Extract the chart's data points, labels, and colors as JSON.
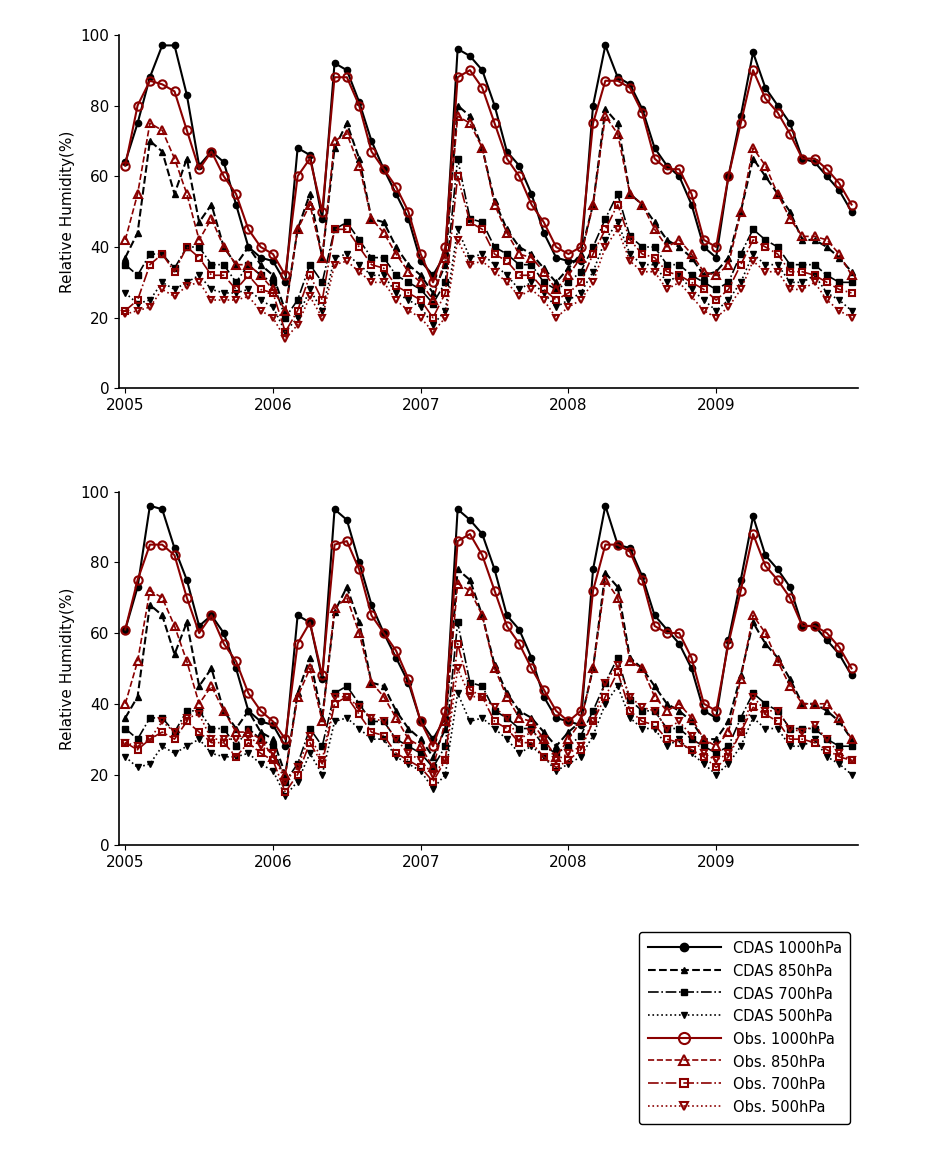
{
  "ylabel": "Relative Humidity(%)",
  "ylim": [
    0,
    100
  ],
  "yticks": [
    0,
    20,
    40,
    60,
    80,
    100
  ],
  "year_labels": [
    2005,
    2006,
    2007,
    2008,
    2009
  ],
  "cdas_1000": [
    64,
    75,
    88,
    97,
    97,
    83,
    63,
    67,
    64,
    52,
    40,
    37,
    36,
    30,
    68,
    66,
    48,
    92,
    90,
    81,
    70,
    62,
    55,
    48,
    36,
    32,
    38,
    96,
    94,
    90,
    80,
    67,
    63,
    55,
    44,
    37,
    36,
    36,
    80,
    97,
    88,
    86,
    79,
    68,
    63,
    60,
    52,
    40,
    37,
    60,
    77,
    95,
    85,
    80,
    75,
    65,
    64,
    60,
    56,
    50
  ],
  "cdas_850": [
    37,
    44,
    70,
    67,
    55,
    65,
    47,
    52,
    40,
    35,
    40,
    35,
    32,
    22,
    45,
    55,
    37,
    68,
    75,
    65,
    48,
    47,
    40,
    35,
    32,
    27,
    35,
    80,
    77,
    68,
    53,
    45,
    40,
    38,
    34,
    30,
    34,
    38,
    52,
    79,
    75,
    55,
    52,
    47,
    42,
    40,
    37,
    32,
    33,
    37,
    50,
    65,
    60,
    55,
    50,
    42,
    42,
    40,
    37,
    33
  ],
  "cdas_700": [
    35,
    32,
    38,
    38,
    34,
    40,
    40,
    35,
    35,
    30,
    35,
    32,
    30,
    20,
    25,
    35,
    30,
    45,
    47,
    42,
    37,
    37,
    32,
    30,
    28,
    24,
    30,
    65,
    48,
    47,
    40,
    38,
    35,
    35,
    30,
    28,
    30,
    33,
    40,
    48,
    55,
    43,
    40,
    40,
    35,
    35,
    32,
    30,
    28,
    30,
    38,
    45,
    42,
    40,
    35,
    35,
    35,
    32,
    30,
    30
  ],
  "cdas_500": [
    27,
    24,
    25,
    30,
    28,
    30,
    32,
    28,
    27,
    27,
    28,
    25,
    23,
    16,
    20,
    28,
    22,
    37,
    38,
    35,
    32,
    32,
    27,
    25,
    23,
    18,
    22,
    45,
    37,
    38,
    35,
    32,
    28,
    30,
    27,
    23,
    25,
    27,
    33,
    42,
    47,
    38,
    35,
    35,
    30,
    32,
    28,
    25,
    22,
    25,
    30,
    38,
    35,
    35,
    30,
    30,
    32,
    27,
    25,
    22
  ],
  "obs_1000": [
    63,
    80,
    87,
    86,
    84,
    73,
    62,
    67,
    60,
    55,
    45,
    40,
    38,
    32,
    60,
    65,
    50,
    88,
    88,
    80,
    67,
    62,
    57,
    50,
    38,
    30,
    40,
    88,
    90,
    85,
    75,
    65,
    60,
    52,
    47,
    40,
    38,
    40,
    75,
    87,
    87,
    85,
    78,
    65,
    62,
    62,
    55,
    42,
    40,
    60,
    75,
    90,
    82,
    78,
    72,
    65,
    65,
    62,
    58,
    52
  ],
  "obs_850": [
    42,
    55,
    75,
    73,
    65,
    55,
    42,
    48,
    40,
    35,
    35,
    32,
    28,
    22,
    45,
    52,
    37,
    70,
    72,
    63,
    48,
    44,
    38,
    33,
    30,
    25,
    37,
    77,
    75,
    68,
    52,
    44,
    38,
    37,
    33,
    28,
    32,
    37,
    52,
    77,
    72,
    55,
    52,
    45,
    40,
    42,
    38,
    33,
    32,
    35,
    50,
    68,
    63,
    55,
    48,
    43,
    43,
    42,
    38,
    32
  ],
  "obs_700": [
    22,
    25,
    35,
    38,
    33,
    40,
    37,
    32,
    32,
    28,
    32,
    28,
    27,
    16,
    22,
    32,
    25,
    45,
    45,
    40,
    35,
    34,
    29,
    27,
    25,
    20,
    27,
    60,
    47,
    45,
    38,
    36,
    32,
    32,
    28,
    25,
    27,
    30,
    38,
    45,
    52,
    42,
    38,
    37,
    33,
    32,
    30,
    28,
    25,
    28,
    35,
    42,
    40,
    38,
    33,
    33,
    32,
    30,
    28,
    27
  ],
  "obs_500": [
    21,
    22,
    23,
    28,
    26,
    29,
    30,
    25,
    25,
    25,
    26,
    22,
    20,
    14,
    18,
    26,
    20,
    35,
    36,
    33,
    30,
    30,
    25,
    22,
    20,
    16,
    20,
    42,
    35,
    36,
    33,
    30,
    26,
    28,
    25,
    20,
    23,
    25,
    30,
    40,
    45,
    36,
    33,
    33,
    28,
    30,
    26,
    22,
    20,
    23,
    28,
    36,
    33,
    33,
    28,
    28,
    30,
    25,
    22,
    20
  ],
  "panel2_cdas_1000": [
    61,
    73,
    96,
    95,
    84,
    75,
    62,
    65,
    60,
    50,
    38,
    35,
    34,
    28,
    65,
    63,
    47,
    95,
    92,
    80,
    68,
    60,
    53,
    46,
    35,
    30,
    36,
    95,
    92,
    88,
    78,
    65,
    61,
    53,
    42,
    36,
    35,
    34,
    78,
    96,
    85,
    84,
    76,
    65,
    61,
    57,
    50,
    38,
    36,
    58,
    75,
    93,
    82,
    78,
    73,
    62,
    62,
    58,
    54,
    48
  ],
  "panel2_cdas_850": [
    36,
    42,
    68,
    65,
    54,
    63,
    45,
    50,
    38,
    33,
    38,
    32,
    30,
    20,
    43,
    53,
    36,
    66,
    73,
    63,
    46,
    45,
    38,
    33,
    30,
    25,
    33,
    78,
    75,
    65,
    51,
    43,
    38,
    36,
    32,
    28,
    32,
    35,
    50,
    77,
    73,
    53,
    50,
    45,
    40,
    38,
    35,
    30,
    30,
    35,
    48,
    63,
    57,
    53,
    47,
    40,
    40,
    38,
    35,
    30
  ],
  "panel2_cdas_700": [
    33,
    30,
    36,
    36,
    32,
    38,
    38,
    33,
    33,
    28,
    33,
    30,
    28,
    18,
    23,
    33,
    28,
    43,
    45,
    40,
    35,
    35,
    30,
    28,
    26,
    22,
    28,
    63,
    46,
    45,
    38,
    36,
    33,
    33,
    28,
    26,
    28,
    31,
    38,
    46,
    53,
    41,
    38,
    38,
    33,
    33,
    30,
    28,
    26,
    28,
    36,
    43,
    40,
    38,
    33,
    33,
    33,
    30,
    28,
    28
  ],
  "panel2_cdas_500": [
    25,
    22,
    23,
    28,
    26,
    28,
    30,
    26,
    25,
    25,
    26,
    23,
    21,
    14,
    18,
    26,
    20,
    35,
    36,
    33,
    30,
    30,
    25,
    23,
    21,
    16,
    20,
    43,
    35,
    36,
    33,
    30,
    26,
    28,
    25,
    21,
    23,
    25,
    31,
    40,
    45,
    36,
    33,
    33,
    28,
    30,
    26,
    23,
    20,
    23,
    28,
    36,
    33,
    33,
    28,
    28,
    30,
    25,
    23,
    20
  ],
  "panel2_obs_1000": [
    61,
    75,
    85,
    85,
    82,
    70,
    60,
    65,
    57,
    52,
    43,
    38,
    35,
    30,
    57,
    63,
    48,
    85,
    86,
    78,
    65,
    60,
    55,
    47,
    35,
    28,
    38,
    86,
    88,
    82,
    72,
    62,
    57,
    50,
    44,
    38,
    35,
    38,
    72,
    85,
    85,
    83,
    75,
    62,
    60,
    60,
    53,
    40,
    38,
    57,
    72,
    88,
    79,
    75,
    70,
    62,
    62,
    60,
    56,
    50
  ],
  "panel2_obs_850": [
    40,
    52,
    72,
    70,
    62,
    52,
    40,
    45,
    38,
    32,
    32,
    30,
    25,
    20,
    42,
    50,
    35,
    67,
    70,
    60,
    46,
    42,
    36,
    30,
    28,
    22,
    35,
    74,
    72,
    65,
    50,
    42,
    36,
    35,
    30,
    25,
    30,
    35,
    50,
    75,
    70,
    52,
    50,
    42,
    38,
    40,
    36,
    30,
    28,
    32,
    47,
    65,
    60,
    52,
    45,
    40,
    40,
    40,
    36,
    30
  ],
  "panel2_obs_700": [
    29,
    27,
    30,
    32,
    30,
    35,
    32,
    29,
    29,
    25,
    29,
    26,
    24,
    15,
    20,
    29,
    23,
    40,
    42,
    37,
    32,
    31,
    26,
    24,
    22,
    18,
    24,
    57,
    44,
    42,
    35,
    33,
    29,
    29,
    25,
    22,
    24,
    27,
    35,
    42,
    49,
    38,
    35,
    34,
    30,
    29,
    27,
    25,
    22,
    25,
    32,
    39,
    37,
    35,
    30,
    30,
    29,
    27,
    25,
    24
  ],
  "panel2_obs_500": [
    29,
    28,
    30,
    35,
    32,
    36,
    37,
    30,
    30,
    30,
    31,
    28,
    26,
    18,
    22,
    31,
    24,
    42,
    42,
    39,
    36,
    35,
    30,
    26,
    24,
    20,
    24,
    50,
    42,
    42,
    39,
    36,
    30,
    32,
    30,
    24,
    26,
    28,
    35,
    46,
    51,
    42,
    39,
    38,
    33,
    35,
    31,
    26,
    24,
    26,
    32,
    42,
    38,
    38,
    33,
    32,
    34,
    30,
    26,
    24
  ],
  "black_color": "#000000",
  "red_color": "#8B0000"
}
